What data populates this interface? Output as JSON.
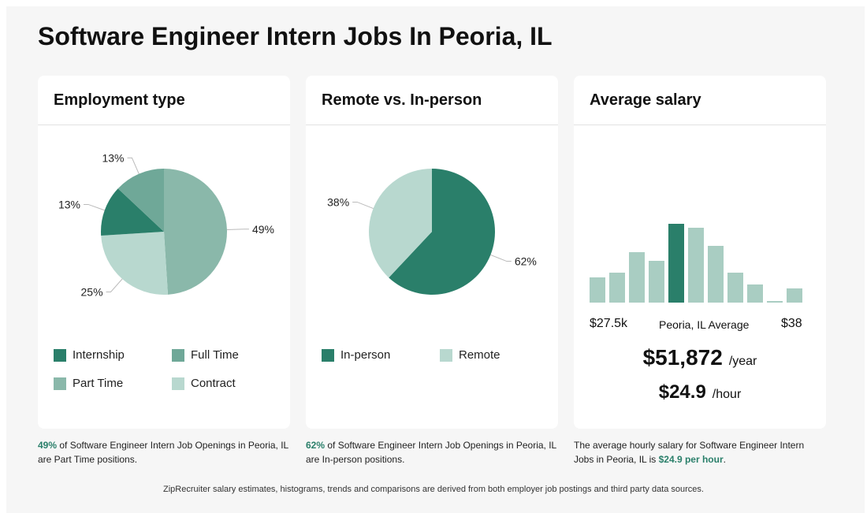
{
  "page": {
    "title": "Software Engineer Intern Jobs In Peoria, IL"
  },
  "employment": {
    "title": "Employment type",
    "legend": [
      {
        "label": "Internship",
        "color": "#2a7f6a"
      },
      {
        "label": "Full Time",
        "color": "#6fa898"
      },
      {
        "label": "Part Time",
        "color": "#8ab8aa"
      },
      {
        "label": "Contract",
        "color": "#b8d8cf"
      }
    ],
    "caption_highlight": "49%",
    "caption_text": " of Software Engineer Intern Job Openings in Peoria, IL are Part Time positions."
  },
  "remote": {
    "title": "Remote vs. In-person",
    "legend": [
      {
        "label": "In-person",
        "color": "#2a7f6a"
      },
      {
        "label": "Remote",
        "color": "#b8d8cf"
      }
    ],
    "caption_highlight": "62%",
    "caption_text": " of Software Engineer Intern Job Openings in Peoria, IL are In-person positions."
  },
  "salary": {
    "title": "Average salary",
    "min_label": "$27.5k",
    "mid_label": "Peoria, IL Average",
    "max_label": "$38",
    "yearly": "$51,872",
    "yearly_unit": "/year",
    "hourly": "$24.9",
    "hourly_unit": "/hour",
    "caption_prefix": "The average hourly salary for Software Engineer Intern Jobs in Peoria, IL is ",
    "caption_highlight": "$24.9 per hour",
    "caption_suffix": "."
  },
  "footer": "ZipRecruiter salary estimates, histograms, trends and comparisons are derived from both employer job postings and third party data sources.",
  "chart_data": [
    {
      "type": "pie",
      "title": "Employment type",
      "labels": [
        "Part Time",
        "Contract",
        "Internship",
        "Full Time"
      ],
      "values": [
        49,
        25,
        13,
        13
      ],
      "value_labels": [
        "49%",
        "25%",
        "13%",
        "13%"
      ],
      "colors": [
        "#8ab8aa",
        "#b8d8cf",
        "#2a7f6a",
        "#6fa898"
      ]
    },
    {
      "type": "pie",
      "title": "Remote vs. In-person",
      "labels": [
        "In-person",
        "Remote"
      ],
      "values": [
        62,
        38
      ],
      "value_labels": [
        "62%",
        "38%"
      ],
      "colors": [
        "#2a7f6a",
        "#b8d8cf"
      ]
    },
    {
      "type": "bar",
      "title": "Average salary",
      "values": [
        32,
        38,
        64,
        53,
        100,
        95,
        72,
        38,
        23,
        2,
        18
      ],
      "highlight_index": 4,
      "colors": {
        "normal": "#a9cdc2",
        "highlight": "#2a7f6a"
      }
    }
  ]
}
